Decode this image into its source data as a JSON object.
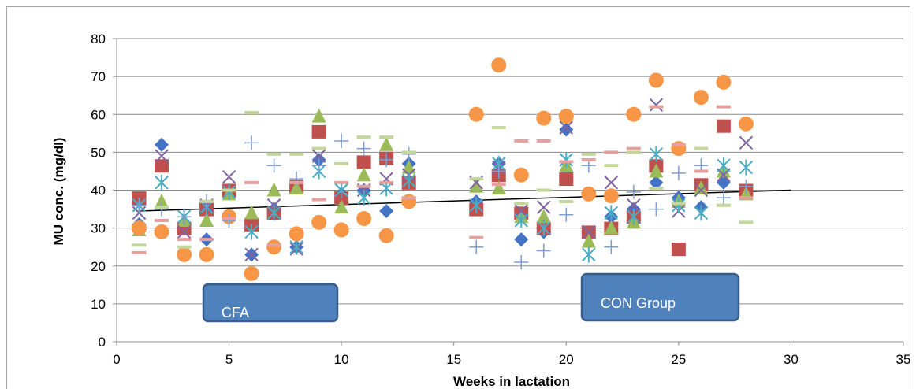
{
  "chart_data": {
    "type": "scatter",
    "xlabel": "Weeks in lactation",
    "ylabel": "MU conc. (mg/dl)",
    "xlim": [
      0,
      35
    ],
    "ylim": [
      0,
      80
    ],
    "x_ticks": [
      0,
      5,
      10,
      15,
      20,
      25,
      30,
      35
    ],
    "y_ticks": [
      0,
      10,
      20,
      30,
      40,
      50,
      60,
      70,
      80
    ],
    "grid": "horizontal",
    "annotations": [
      {
        "text": "CFA"
      },
      {
        "text": "CON Group"
      }
    ],
    "trendline": {
      "x": [
        1,
        30
      ],
      "y": [
        34.5,
        40
      ]
    },
    "series": [
      {
        "marker": "diamond",
        "color": "#4472c4",
        "x": [
          1,
          2,
          3,
          4,
          5,
          6,
          7,
          8,
          9,
          10,
          11,
          12,
          13,
          16,
          17,
          18,
          19,
          20,
          21,
          22,
          23,
          24,
          25,
          26,
          27,
          28
        ],
        "y": [
          31,
          52,
          30,
          27,
          40,
          23,
          35,
          25,
          48,
          39,
          40,
          34.5,
          47,
          37,
          47,
          27,
          29,
          56,
          28,
          33,
          35,
          42,
          38,
          35.5,
          42,
          40
        ]
      },
      {
        "marker": "square",
        "color": "#c0504d",
        "x": [
          1,
          2,
          3,
          4,
          5,
          6,
          7,
          8,
          9,
          10,
          11,
          12,
          13,
          16,
          17,
          18,
          19,
          20,
          21,
          22,
          23,
          24,
          25,
          26,
          27,
          28
        ],
        "y": [
          38,
          46.5,
          30,
          35,
          40,
          31,
          34,
          41,
          55.5,
          38,
          47.5,
          48.5,
          42,
          35,
          44,
          34,
          30,
          43,
          29,
          30,
          33,
          46.5,
          24.5,
          41.5,
          57,
          40
        ]
      },
      {
        "marker": "triangle",
        "color": "#9bbb59",
        "x": [
          1,
          2,
          3,
          4,
          5,
          6,
          7,
          8,
          9,
          10,
          11,
          12,
          13,
          16,
          17,
          18,
          19,
          20,
          21,
          22,
          23,
          24,
          25,
          26,
          27,
          28
        ],
        "y": [
          29.5,
          37,
          32,
          32,
          39,
          34,
          40,
          40.5,
          59.5,
          35.5,
          44,
          52,
          46,
          41,
          40.5,
          33,
          33,
          46.5,
          26.5,
          30,
          31.5,
          45,
          37,
          40.5,
          45,
          39
        ]
      },
      {
        "marker": "x",
        "color": "#8064a2",
        "x": [
          1,
          2,
          3,
          4,
          5,
          6,
          7,
          8,
          9,
          10,
          11,
          12,
          13,
          16,
          17,
          18,
          19,
          20,
          21,
          22,
          23,
          24,
          25,
          26,
          27,
          28
        ],
        "y": [
          34,
          49,
          29,
          36,
          43.5,
          23,
          36,
          24.5,
          49,
          40,
          40,
          43,
          44,
          42,
          46,
          34.5,
          35.5,
          56.5,
          29,
          42,
          36,
          62.5,
          34.5,
          40,
          44,
          52.5
        ]
      },
      {
        "marker": "asterisk",
        "color": "#4bacc6",
        "x": [
          1,
          2,
          3,
          4,
          5,
          6,
          7,
          8,
          9,
          10,
          11,
          12,
          13,
          16,
          17,
          18,
          19,
          20,
          21,
          22,
          23,
          24,
          25,
          26,
          27,
          28
        ],
        "y": [
          36,
          42,
          33,
          35.5,
          39.5,
          29,
          34,
          25,
          45,
          40,
          38,
          40.5,
          42.5,
          36,
          47,
          32,
          30,
          48,
          23,
          34,
          33,
          49.5,
          36,
          34,
          46.5,
          46
        ]
      },
      {
        "marker": "circle",
        "color": "#f79646",
        "x": [
          1,
          2,
          3,
          4,
          5,
          6,
          7,
          8,
          9,
          10,
          11,
          12,
          13,
          16,
          17,
          18,
          19,
          20,
          21,
          22,
          23,
          24,
          25,
          26,
          27,
          28
        ],
        "y": [
          30,
          29,
          23,
          23,
          33,
          18,
          25,
          28.5,
          31.5,
          29.5,
          32.5,
          28,
          37,
          60,
          73,
          44,
          59,
          59.5,
          39,
          38.5,
          60,
          69,
          51,
          64.5,
          68.5,
          57.5
        ]
      },
      {
        "marker": "plus",
        "color": "#7f9ed1",
        "x": [
          1,
          2,
          3,
          4,
          5,
          6,
          7,
          8,
          9,
          10,
          11,
          12,
          13,
          16,
          17,
          18,
          19,
          20,
          21,
          22,
          23,
          24,
          25,
          26,
          27,
          28
        ],
        "y": [
          36,
          35,
          33,
          37,
          32,
          52.5,
          46.5,
          43,
          46.5,
          53,
          51,
          48,
          49.5,
          25,
          45,
          21,
          24,
          33.5,
          46.5,
          25,
          39.5,
          35,
          44.5,
          46.5,
          38,
          41
        ]
      },
      {
        "marker": "dash",
        "color": "#e6a0a0",
        "x": [
          1,
          2,
          3,
          4,
          5,
          6,
          7,
          8,
          9,
          10,
          11,
          12,
          13,
          16,
          17,
          18,
          19,
          20,
          21,
          22,
          23,
          24,
          25,
          26,
          27,
          28
        ],
        "y": [
          23.5,
          32,
          27,
          27,
          32.5,
          42,
          25.5,
          42,
          37.5,
          42,
          41,
          42,
          38,
          27.5,
          41.5,
          53,
          53,
          47.5,
          48,
          50,
          51,
          62,
          52,
          45,
          62,
          38
        ]
      },
      {
        "marker": "dash",
        "color": "#c3d69b",
        "x": [
          1,
          2,
          3,
          4,
          5,
          6,
          7,
          8,
          9,
          10,
          11,
          12,
          13,
          16,
          17,
          18,
          19,
          20,
          21,
          22,
          23,
          24,
          25,
          26,
          27,
          28
        ],
        "y": [
          25.5,
          35.5,
          25,
          37,
          40,
          60.5,
          49.5,
          49.5,
          51,
          47,
          54,
          54,
          50,
          43,
          56.5,
          36.5,
          40,
          37,
          49.5,
          46.5,
          50,
          40.5,
          36.5,
          51,
          36,
          31.5
        ]
      }
    ]
  }
}
